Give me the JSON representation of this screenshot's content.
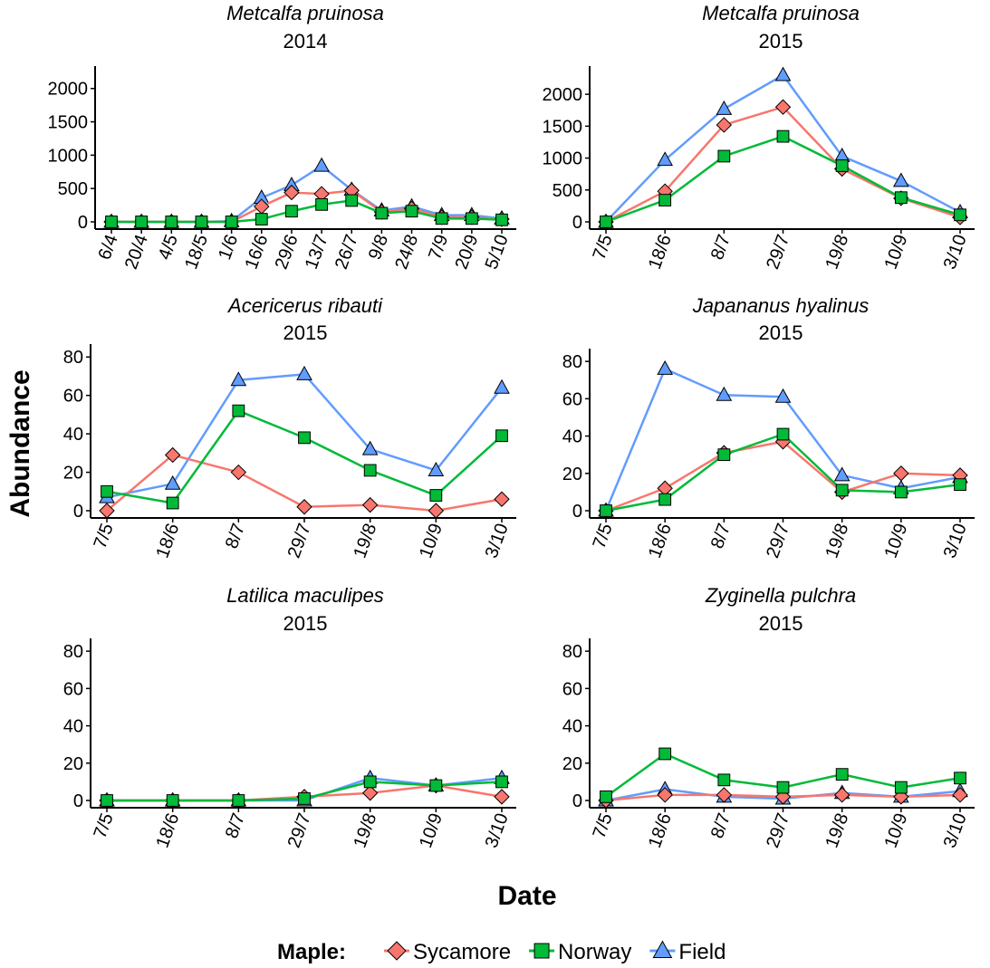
{
  "figure": {
    "xlabel": "Date",
    "ylabel": "Abundance",
    "legend": {
      "title": "Maple:",
      "position": "bottom",
      "items": [
        {
          "name": "Sycamore",
          "color": "#F8766D",
          "marker": "diamond"
        },
        {
          "name": "Norway",
          "color": "#00BA38",
          "marker": "square"
        },
        {
          "name": "Field",
          "color": "#619CFF",
          "marker": "triangle"
        }
      ]
    }
  },
  "chart_data": [
    {
      "type": "line",
      "title": "Metcalfa pruinosa",
      "subtitle": "2014",
      "categories": [
        "6/4",
        "20/4",
        "4/5",
        "18/5",
        "1/6",
        "16/6",
        "29/6",
        "13/7",
        "26/7",
        "9/8",
        "24/8",
        "7/9",
        "20/9",
        "5/10"
      ],
      "ylim": [
        0,
        2200
      ],
      "yticks": [
        0,
        500,
        1000,
        1500,
        2000
      ],
      "series": [
        {
          "name": "Sycamore",
          "values": [
            0,
            0,
            0,
            0,
            0,
            230,
            440,
            420,
            470,
            150,
            200,
            70,
            70,
            40
          ]
        },
        {
          "name": "Norway",
          "values": [
            0,
            0,
            0,
            0,
            0,
            40,
            160,
            260,
            320,
            130,
            160,
            50,
            50,
            30
          ]
        },
        {
          "name": "Field",
          "values": [
            0,
            0,
            0,
            0,
            10,
            360,
            550,
            840,
            480,
            170,
            230,
            100,
            100,
            50
          ]
        }
      ]
    },
    {
      "type": "line",
      "title": "Metcalfa pruinosa",
      "subtitle": "2015",
      "categories": [
        "7/5",
        "18/6",
        "8/7",
        "29/7",
        "19/8",
        "10/9",
        "3/10"
      ],
      "ylim": [
        0,
        2300
      ],
      "yticks": [
        0,
        500,
        1000,
        1500,
        2000
      ],
      "series": [
        {
          "name": "Sycamore",
          "values": [
            0,
            480,
            1520,
            1800,
            830,
            370,
            70
          ]
        },
        {
          "name": "Norway",
          "values": [
            0,
            340,
            1030,
            1340,
            880,
            380,
            110
          ]
        },
        {
          "name": "Field",
          "values": [
            0,
            970,
            1770,
            2300,
            1030,
            640,
            150
          ]
        }
      ]
    },
    {
      "type": "line",
      "title": "Acericerus ribauti",
      "subtitle": "2015",
      "categories": [
        "7/5",
        "18/6",
        "8/7",
        "29/7",
        "19/8",
        "10/9",
        "3/10"
      ],
      "ylim": [
        0,
        82
      ],
      "yticks": [
        0,
        20,
        40,
        60,
        80
      ],
      "series": [
        {
          "name": "Sycamore",
          "values": [
            0,
            29,
            20,
            2,
            3,
            0,
            6
          ]
        },
        {
          "name": "Norway",
          "values": [
            10,
            4,
            52,
            38,
            21,
            8,
            39
          ]
        },
        {
          "name": "Field",
          "values": [
            7,
            14,
            68,
            71,
            32,
            21,
            64
          ]
        }
      ]
    },
    {
      "type": "line",
      "title": "Japananus hyalinus",
      "subtitle": "2015",
      "categories": [
        "7/5",
        "18/6",
        "8/7",
        "29/7",
        "19/8",
        "10/9",
        "3/10"
      ],
      "ylim": [
        0,
        82
      ],
      "yticks": [
        0,
        20,
        40,
        60,
        80
      ],
      "series": [
        {
          "name": "Sycamore",
          "values": [
            0,
            12,
            31,
            37,
            10,
            20,
            19
          ]
        },
        {
          "name": "Norway",
          "values": [
            0,
            6,
            30,
            41,
            11,
            10,
            14
          ]
        },
        {
          "name": "Field",
          "values": [
            0,
            76,
            62,
            61,
            19,
            12,
            18
          ]
        }
      ]
    },
    {
      "type": "line",
      "title": "Latilica maculipes",
      "subtitle": "2015",
      "categories": [
        "7/5",
        "18/6",
        "8/7",
        "29/7",
        "19/8",
        "10/9",
        "3/10"
      ],
      "ylim": [
        0,
        82
      ],
      "yticks": [
        0,
        20,
        40,
        60,
        80
      ],
      "series": [
        {
          "name": "Sycamore",
          "values": [
            0,
            0,
            0,
            2,
            4,
            8,
            2
          ]
        },
        {
          "name": "Norway",
          "values": [
            0,
            0,
            0,
            1,
            10,
            8,
            10
          ]
        },
        {
          "name": "Field",
          "values": [
            0,
            0,
            0,
            0,
            12,
            8,
            12
          ]
        }
      ]
    },
    {
      "type": "line",
      "title": "Zyginella pulchra",
      "subtitle": "2015",
      "categories": [
        "7/5",
        "18/6",
        "8/7",
        "29/7",
        "19/8",
        "10/9",
        "3/10"
      ],
      "ylim": [
        0,
        82
      ],
      "yticks": [
        0,
        20,
        40,
        60,
        80
      ],
      "series": [
        {
          "name": "Sycamore",
          "values": [
            0,
            3,
            3,
            2,
            3,
            2,
            3
          ]
        },
        {
          "name": "Norway",
          "values": [
            2,
            25,
            11,
            7,
            14,
            7,
            12
          ]
        },
        {
          "name": "Field",
          "values": [
            0,
            6,
            2,
            1,
            4,
            2,
            5
          ]
        }
      ]
    }
  ]
}
